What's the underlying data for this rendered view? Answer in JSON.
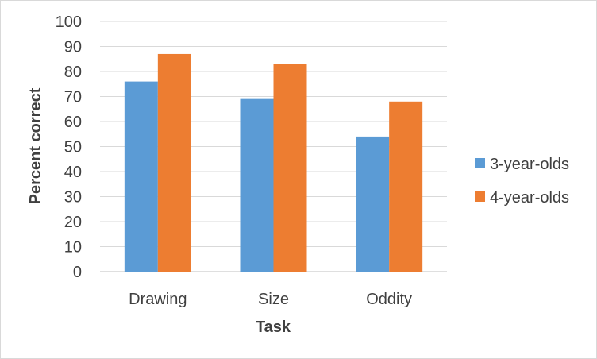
{
  "chart_data": {
    "type": "bar",
    "title": "",
    "xlabel": "Task",
    "ylabel": "Percent correct",
    "categories": [
      "Drawing",
      "Size",
      "Oddity"
    ],
    "series": [
      {
        "name": "3-year-olds",
        "color": "#5b9bd5",
        "values": [
          76,
          69,
          54
        ]
      },
      {
        "name": "4-year-olds",
        "color": "#ed7d31",
        "values": [
          87,
          83,
          68
        ]
      }
    ],
    "ylim": [
      0,
      100
    ],
    "yticks": [
      "0",
      "10",
      "20",
      "30",
      "40",
      "50",
      "60",
      "70",
      "80",
      "90",
      "100"
    ],
    "grid": true,
    "legend_position": "right"
  }
}
